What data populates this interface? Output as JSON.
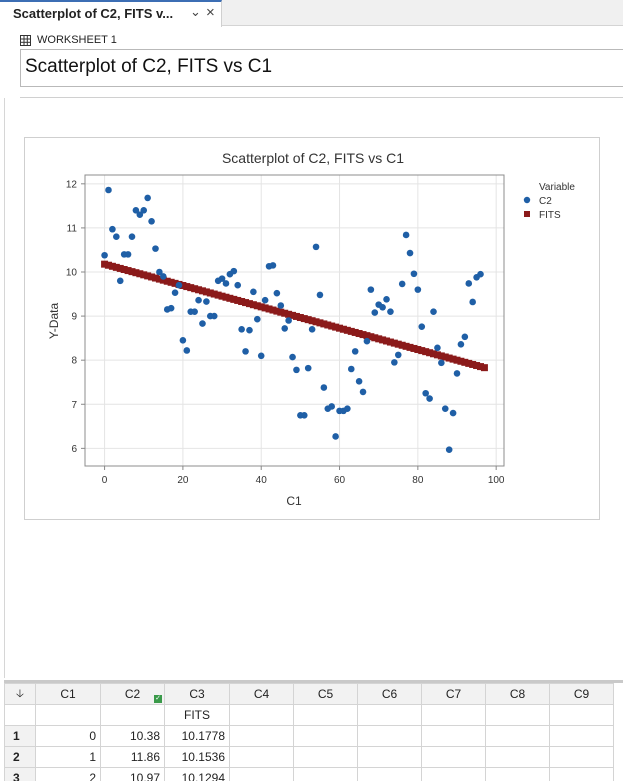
{
  "tab": {
    "title": "Scatterplot of C2, FITS v...",
    "dropdown_icon": "chevron-down-icon",
    "close_icon": "close-icon"
  },
  "worksheet": {
    "label": "WORKSHEET 1",
    "icon": "worksheet-grid-icon"
  },
  "output_title": "Scatterplot of C2, FITS vs C1",
  "chart_data": {
    "type": "scatter",
    "title": "Scatterplot of C2, FITS vs C1",
    "xlabel": "C1",
    "ylabel": "Y-Data",
    "xlim": [
      -5,
      102
    ],
    "ylim": [
      5.6,
      12.2
    ],
    "xticks": [
      0,
      20,
      40,
      60,
      80,
      100
    ],
    "yticks": [
      6,
      7,
      8,
      9,
      10,
      11,
      12
    ],
    "grid": true,
    "legend": {
      "title": "Variable",
      "position": "right"
    },
    "series": [
      {
        "name": "C2",
        "marker": "circle",
        "color": "#1f5fa6",
        "points": [
          [
            0,
            10.38
          ],
          [
            1,
            11.86
          ],
          [
            2,
            10.97
          ],
          [
            3,
            10.8
          ],
          [
            4,
            9.8
          ],
          [
            5,
            10.4
          ],
          [
            6,
            10.4
          ],
          [
            7,
            10.8
          ],
          [
            8,
            11.4
          ],
          [
            9,
            11.3
          ],
          [
            10,
            11.4
          ],
          [
            11,
            11.68
          ],
          [
            12,
            11.15
          ],
          [
            13,
            10.53
          ],
          [
            14,
            10.0
          ],
          [
            15,
            9.9
          ],
          [
            16,
            9.15
          ],
          [
            17,
            9.18
          ],
          [
            18,
            9.53
          ],
          [
            19,
            9.7
          ],
          [
            20,
            8.45
          ],
          [
            21,
            8.22
          ],
          [
            22,
            9.1
          ],
          [
            23,
            9.1
          ],
          [
            24,
            9.36
          ],
          [
            25,
            8.83
          ],
          [
            26,
            9.33
          ],
          [
            27,
            9.0
          ],
          [
            28,
            9.0
          ],
          [
            29,
            9.8
          ],
          [
            30,
            9.85
          ],
          [
            31,
            9.74
          ],
          [
            32,
            9.95
          ],
          [
            33,
            10.02
          ],
          [
            34,
            9.7
          ],
          [
            35,
            8.7
          ],
          [
            36,
            8.2
          ],
          [
            37,
            8.68
          ],
          [
            38,
            9.55
          ],
          [
            39,
            8.93
          ],
          [
            40,
            8.1
          ],
          [
            41,
            9.36
          ],
          [
            42,
            10.13
          ],
          [
            43,
            10.15
          ],
          [
            44,
            9.52
          ],
          [
            45,
            9.24
          ],
          [
            46,
            8.72
          ],
          [
            47,
            8.9
          ],
          [
            48,
            8.07
          ],
          [
            49,
            7.78
          ],
          [
            50,
            6.75
          ],
          [
            51,
            6.75
          ],
          [
            52,
            7.82
          ],
          [
            53,
            8.7
          ],
          [
            54,
            10.57
          ],
          [
            55,
            9.48
          ],
          [
            56,
            7.38
          ],
          [
            57,
            6.9
          ],
          [
            58,
            6.95
          ],
          [
            59,
            6.27
          ],
          [
            60,
            6.85
          ],
          [
            61,
            6.85
          ],
          [
            62,
            6.9
          ],
          [
            63,
            7.8
          ],
          [
            64,
            8.2
          ],
          [
            65,
            7.52
          ],
          [
            66,
            7.28
          ],
          [
            67,
            8.43
          ],
          [
            68,
            9.6
          ],
          [
            69,
            9.08
          ],
          [
            70,
            9.26
          ],
          [
            71,
            9.2
          ],
          [
            72,
            9.38
          ],
          [
            73,
            9.1
          ],
          [
            74,
            7.95
          ],
          [
            75,
            8.12
          ],
          [
            76,
            9.73
          ],
          [
            77,
            10.84
          ],
          [
            78,
            10.43
          ],
          [
            79,
            9.96
          ],
          [
            80,
            9.6
          ],
          [
            81,
            8.76
          ],
          [
            82,
            7.25
          ],
          [
            83,
            7.13
          ],
          [
            84,
            9.1
          ],
          [
            85,
            8.28
          ],
          [
            86,
            7.94
          ],
          [
            87,
            6.9
          ],
          [
            88,
            5.97
          ],
          [
            89,
            6.8
          ],
          [
            90,
            7.7
          ],
          [
            91,
            8.36
          ],
          [
            92,
            8.53
          ],
          [
            93,
            9.74
          ],
          [
            94,
            9.32
          ],
          [
            95,
            9.88
          ],
          [
            96,
            9.95
          ]
        ]
      },
      {
        "name": "FITS",
        "marker": "square",
        "color": "#8b1a1a",
        "line": {
          "intercept": 10.1778,
          "slope": -0.0242,
          "x_from": 0,
          "x_to": 97
        }
      }
    ]
  },
  "grid": {
    "corner_icon": "sort-arrow-icon",
    "columns": [
      "C1",
      "C2",
      "C3",
      "C4",
      "C5",
      "C6",
      "C7",
      "C8",
      "C9"
    ],
    "column_names": [
      "",
      "",
      "FITS",
      "",
      "",
      "",
      "",
      "",
      ""
    ],
    "c2_flag_icon": "data-flag-icon",
    "rows": [
      {
        "num": "1",
        "cells": [
          "0",
          "10.38",
          "10.1778"
        ]
      },
      {
        "num": "2",
        "cells": [
          "1",
          "11.86",
          "10.1536"
        ]
      },
      {
        "num": "3",
        "cells": [
          "2",
          "10.97",
          "10.1294"
        ]
      }
    ]
  }
}
